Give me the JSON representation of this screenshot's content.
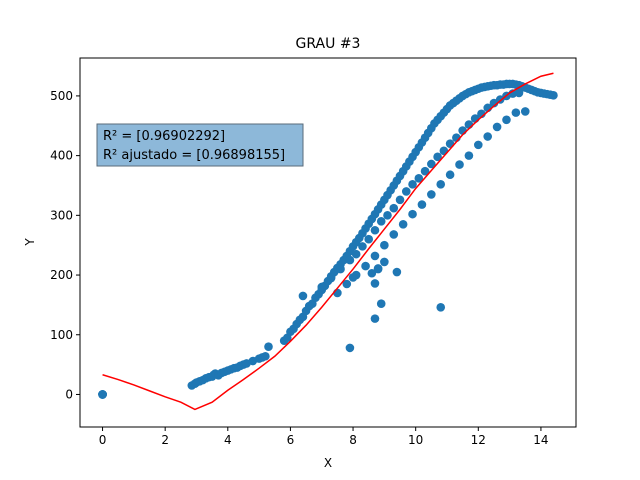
{
  "chart_data": {
    "type": "scatter",
    "title": "GRAU #3",
    "xlabel": "X",
    "ylabel": "Y",
    "xlim": [
      -0.72,
      15.12
    ],
    "ylim": [
      -54.5,
      563.5
    ],
    "xticks": [
      0,
      2,
      4,
      6,
      8,
      10,
      12,
      14
    ],
    "yticks": [
      0,
      100,
      200,
      300,
      400,
      500
    ],
    "grid": false,
    "annotation": [
      "R² = [0.96902292]",
      "R² ajustado = [0.96898155]"
    ],
    "colors": {
      "points": "#1f77b4",
      "fit": "#ff0000",
      "annotation_box": "#8db8d9"
    },
    "series": [
      {
        "kind": "points",
        "x": [
          0,
          0,
          0,
          0,
          0,
          2.85,
          2.95,
          3.0,
          3.1,
          3.2,
          3.3,
          3.4,
          3.5,
          3.55,
          3.6,
          3.7,
          3.8,
          3.9,
          4.0,
          4.1,
          4.2,
          4.3,
          4.4,
          4.5,
          4.6,
          4.8,
          5.0,
          5.1,
          5.2,
          5.3,
          5.8,
          5.9,
          6.0,
          6.1,
          6.2,
          6.3,
          6.4,
          6.5,
          6.6,
          6.7,
          6.8,
          6.9,
          7.0,
          7.1,
          7.2,
          7.3,
          7.4,
          7.5,
          7.6,
          7.7,
          7.8,
          7.9,
          8.0,
          8.1,
          8.2,
          8.3,
          8.4,
          8.5,
          8.6,
          8.7,
          8.8,
          8.9,
          9.0,
          9.1,
          9.2,
          9.3,
          9.4,
          9.5,
          9.6,
          9.7,
          9.8,
          9.9,
          10.0,
          10.1,
          10.2,
          10.3,
          10.4,
          10.5,
          10.6,
          10.7,
          10.8,
          10.9,
          11.0,
          11.1,
          11.2,
          11.3,
          11.4,
          11.5,
          11.6,
          11.7,
          11.8,
          11.9,
          12.0,
          12.1,
          12.2,
          12.3,
          12.4,
          12.5,
          12.6,
          12.7,
          12.8,
          12.9,
          13.0,
          13.1,
          13.2,
          13.3,
          13.4,
          13.5,
          13.6,
          13.7,
          13.8,
          13.9,
          14.0,
          14.1,
          14.2,
          14.3,
          14.4,
          7.0,
          7.3,
          7.6,
          7.9,
          8.1,
          8.3,
          8.5,
          8.7,
          8.9,
          9.1,
          9.3,
          9.5,
          9.7,
          9.9,
          10.1,
          10.3,
          10.5,
          10.7,
          10.9,
          11.1,
          11.3,
          11.5,
          11.7,
          11.9,
          12.1,
          12.3,
          12.5,
          12.7,
          12.9,
          13.1,
          13.3,
          7.5,
          7.8,
          8.1,
          8.4,
          8.7,
          9.0,
          9.3,
          9.6,
          9.9,
          10.2,
          10.5,
          10.8,
          11.1,
          11.4,
          11.7,
          12.0,
          12.3,
          12.6,
          12.9,
          13.2,
          8.0,
          8.6,
          8.8,
          9.0,
          9.4,
          8.8,
          8.7,
          8.9,
          6.4,
          8.7,
          10.8,
          7.9,
          13.5
        ],
        "y": [
          0,
          0,
          0,
          0,
          0,
          15,
          18,
          20,
          22,
          24,
          27,
          29,
          30,
          33,
          35,
          32,
          36,
          38,
          40,
          42,
          44,
          45,
          48,
          50,
          52,
          56,
          60,
          62,
          64,
          80,
          90,
          95,
          105,
          110,
          118,
          125,
          130,
          140,
          148,
          152,
          162,
          168,
          175,
          182,
          190,
          198,
          205,
          212,
          218,
          225,
          232,
          240,
          248,
          255,
          262,
          270,
          278,
          286,
          294,
          302,
          310,
          318,
          326,
          334,
          342,
          350,
          358,
          366,
          374,
          382,
          390,
          398,
          406,
          414,
          422,
          430,
          438,
          446,
          454,
          460,
          466,
          472,
          478,
          484,
          488,
          492,
          496,
          500,
          503,
          506,
          508,
          510,
          512,
          514,
          515,
          516,
          517,
          518,
          518,
          519,
          519,
          520,
          520,
          520,
          519,
          518,
          516,
          514,
          512,
          510,
          508,
          506,
          505,
          504,
          503,
          502,
          501,
          180,
          195,
          210,
          225,
          235,
          248,
          260,
          275,
          290,
          300,
          312,
          326,
          340,
          352,
          362,
          374,
          386,
          398,
          408,
          420,
          430,
          442,
          452,
          462,
          470,
          480,
          488,
          494,
          500,
          504,
          505,
          170,
          185,
          200,
          215,
          232,
          250,
          268,
          285,
          302,
          318,
          335,
          352,
          368,
          385,
          400,
          418,
          432,
          448,
          460,
          472,
          196,
          203,
          211,
          222,
          205,
          210,
          127,
          152,
          165,
          186,
          146,
          78,
          474
        ]
      },
      {
        "kind": "fit_line",
        "x": [
          0,
          0.5,
          1,
          1.5,
          2,
          2.5,
          2.95,
          3.5,
          4,
          4.5,
          5,
          5.5,
          6,
          6.5,
          7,
          7.5,
          8,
          8.5,
          9,
          9.5,
          10,
          10.5,
          11,
          11.5,
          12,
          12.5,
          13,
          13.5,
          14,
          14.4
        ],
        "y": [
          33,
          25,
          16,
          6,
          -4,
          -13,
          -25,
          -13,
          7,
          25,
          44,
          64,
          89,
          116,
          146,
          178,
          210,
          244,
          277,
          310,
          345,
          375,
          405,
          435,
          460,
          483,
          505,
          520,
          533,
          538
        ]
      }
    ]
  }
}
